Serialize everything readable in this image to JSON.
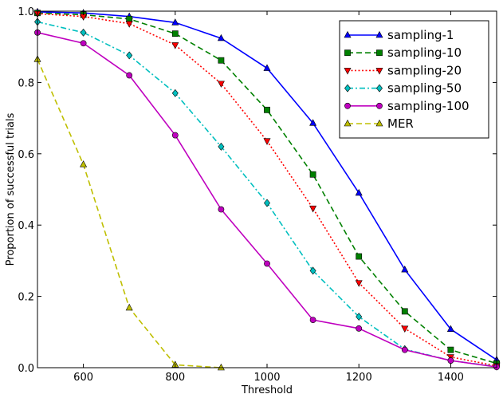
{
  "chart_data": {
    "type": "line",
    "xlabel": "Threshold",
    "ylabel": "Proportion of successful trials",
    "xlim": [
      500,
      1500
    ],
    "ylim": [
      0,
      1.0
    ],
    "xticks": [
      600,
      800,
      1000,
      1200,
      1400
    ],
    "xtick_labels": [
      "600",
      "800",
      "1000",
      "1200",
      "1400"
    ],
    "yticks": [
      0,
      0.2,
      0.4,
      0.6,
      0.8,
      1.0
    ],
    "ytick_labels": [
      "0.0",
      "0.2",
      "0.4",
      "0.6",
      "0.8",
      "1.0"
    ],
    "grid": false,
    "legend_position": "top-right",
    "series": [
      {
        "name": "sampling-1",
        "color": "#0000ff",
        "linestyle": "solid",
        "marker": "triangle-up",
        "x": [
          500,
          600,
          700,
          800,
          900,
          1000,
          1100,
          1200,
          1300,
          1400,
          1500
        ],
        "y": [
          0.998,
          0.995,
          0.985,
          0.968,
          0.924,
          0.84,
          0.686,
          0.49,
          0.275,
          0.108,
          0.022
        ]
      },
      {
        "name": "sampling-10",
        "color": "#008000",
        "linestyle": "dashed",
        "marker": "square",
        "x": [
          500,
          600,
          700,
          800,
          900,
          1000,
          1100,
          1200,
          1300,
          1400,
          1500
        ],
        "y": [
          0.995,
          0.99,
          0.978,
          0.937,
          0.862,
          0.723,
          0.542,
          0.312,
          0.158,
          0.05,
          0.012
        ]
      },
      {
        "name": "sampling-20",
        "color": "#ff0000",
        "linestyle": "dotted",
        "marker": "triangle-down",
        "x": [
          500,
          600,
          700,
          800,
          900,
          1000,
          1100,
          1200,
          1300,
          1400,
          1500
        ],
        "y": [
          0.993,
          0.985,
          0.965,
          0.905,
          0.797,
          0.636,
          0.447,
          0.238,
          0.11,
          0.03,
          0.005
        ]
      },
      {
        "name": "sampling-50",
        "color": "#00bfbf",
        "linestyle": "dashdot",
        "marker": "diamond",
        "x": [
          500,
          600,
          700,
          800,
          900,
          1000,
          1100,
          1200,
          1300,
          1400,
          1500
        ],
        "y": [
          0.97,
          0.94,
          0.876,
          0.77,
          0.62,
          0.462,
          0.272,
          0.143,
          0.052,
          0.02,
          0.003
        ]
      },
      {
        "name": "sampling-100",
        "color": "#bf00bf",
        "linestyle": "solid",
        "marker": "circle",
        "x": [
          500,
          600,
          700,
          800,
          900,
          1000,
          1100,
          1200,
          1300,
          1400,
          1500
        ],
        "y": [
          0.94,
          0.91,
          0.82,
          0.652,
          0.444,
          0.292,
          0.134,
          0.11,
          0.05,
          0.02,
          0.002
        ]
      },
      {
        "name": "MER",
        "color": "#bfbf00",
        "linestyle": "dashed",
        "marker": "triangle-up",
        "x": [
          500,
          600,
          700,
          800,
          900
        ],
        "y": [
          0.865,
          0.57,
          0.168,
          0.008,
          0.0
        ]
      }
    ]
  }
}
